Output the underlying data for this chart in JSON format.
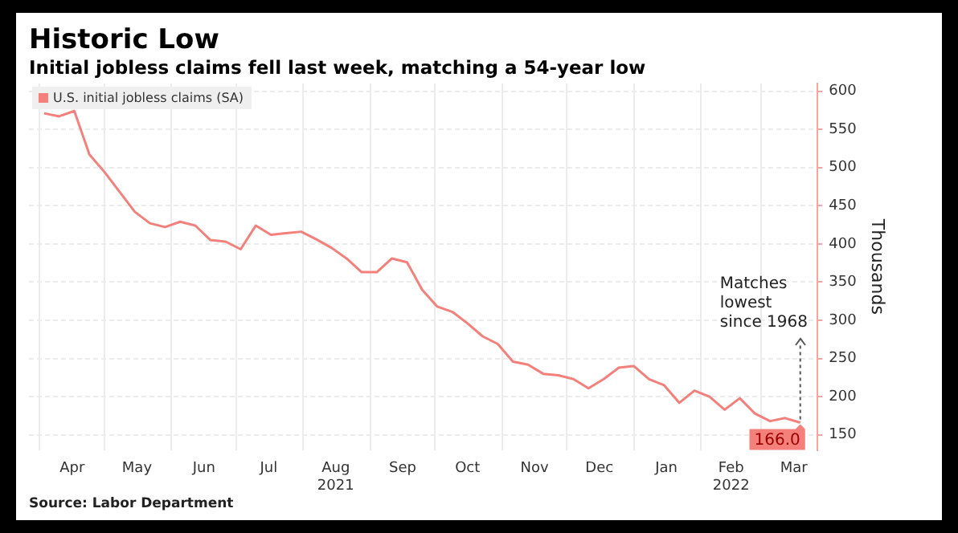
{
  "chart_data": {
    "type": "line",
    "title": "Historic Low",
    "subtitle": "Initial jobless claims fell last week, matching a 54-year low",
    "ylabel": "Thousands",
    "x": [
      "2021-04-03",
      "2021-04-10",
      "2021-04-17",
      "2021-04-24",
      "2021-05-01",
      "2021-05-08",
      "2021-05-15",
      "2021-05-22",
      "2021-05-29",
      "2021-06-05",
      "2021-06-12",
      "2021-06-19",
      "2021-06-26",
      "2021-07-03",
      "2021-07-10",
      "2021-07-17",
      "2021-07-24",
      "2021-07-31",
      "2021-08-07",
      "2021-08-14",
      "2021-08-21",
      "2021-08-28",
      "2021-09-04",
      "2021-09-11",
      "2021-09-18",
      "2021-09-25",
      "2021-10-02",
      "2021-10-09",
      "2021-10-16",
      "2021-10-23",
      "2021-10-30",
      "2021-11-06",
      "2021-11-13",
      "2021-11-20",
      "2021-11-27",
      "2021-12-04",
      "2021-12-11",
      "2021-12-18",
      "2021-12-25",
      "2022-01-01",
      "2022-01-08",
      "2022-01-15",
      "2022-01-22",
      "2022-01-29",
      "2022-02-05",
      "2022-02-12",
      "2022-02-19",
      "2022-02-26",
      "2022-03-05",
      "2022-03-12",
      "2022-03-19"
    ],
    "series": [
      {
        "name": "U.S. initial jobless claims (SA)",
        "color": "#f4807c",
        "values": [
          571,
          567,
          574,
          517,
          494,
          468,
          442,
          427,
          422,
          429,
          424,
          405,
          403,
          393,
          424,
          412,
          414,
          416,
          406,
          395,
          381,
          363,
          363,
          381,
          376,
          340,
          318,
          311,
          296,
          279,
          269,
          246,
          242,
          230,
          228,
          223,
          211,
          223,
          238,
          240,
          223,
          215,
          192,
          208,
          200,
          183,
          198,
          178,
          168,
          172,
          166
        ],
        "value_labels": [
          null,
          null,
          null,
          null,
          null,
          null,
          null,
          null,
          null,
          null,
          null,
          null,
          null,
          null,
          null,
          null,
          null,
          null,
          null,
          null,
          null,
          null,
          null,
          null,
          null,
          null,
          null,
          null,
          null,
          null,
          null,
          null,
          null,
          null,
          null,
          null,
          null,
          null,
          null,
          null,
          null,
          null,
          null,
          null,
          null,
          null,
          null,
          null,
          null,
          null,
          "166.0"
        ]
      }
    ],
    "xlim": [
      "2021-03-27",
      "2022-03-27"
    ],
    "xticks": [
      {
        "value": "2021-04-01",
        "label": null
      },
      {
        "value": "2021-04-16",
        "label": "Apr"
      },
      {
        "value": "2021-05-01",
        "label": null
      },
      {
        "value": "2021-05-16",
        "label": "May"
      },
      {
        "value": "2021-06-01",
        "label": null
      },
      {
        "value": "2021-06-16",
        "label": "Jun"
      },
      {
        "value": "2021-07-01",
        "label": null
      },
      {
        "value": "2021-07-16",
        "label": "Jul"
      },
      {
        "value": "2021-08-01",
        "label": null
      },
      {
        "value": "2021-08-16",
        "label": "Aug\n2021"
      },
      {
        "value": "2021-09-01",
        "label": null
      },
      {
        "value": "2021-09-16",
        "label": "Sep"
      },
      {
        "value": "2021-10-01",
        "label": null
      },
      {
        "value": "2021-10-16",
        "label": "Oct"
      },
      {
        "value": "2021-11-01",
        "label": null
      },
      {
        "value": "2021-11-16",
        "label": "Nov"
      },
      {
        "value": "2021-12-01",
        "label": null
      },
      {
        "value": "2021-12-16",
        "label": "Dec"
      },
      {
        "value": "2022-01-01",
        "label": null
      },
      {
        "value": "2022-01-16",
        "label": "Jan"
      },
      {
        "value": "2022-02-01",
        "label": null
      },
      {
        "value": "2022-02-15",
        "label": "Feb\n2022"
      },
      {
        "value": "2022-03-01",
        "label": null
      },
      {
        "value": "2022-03-16",
        "label": "Mar"
      }
    ],
    "ylim": [
      130,
      610
    ],
    "yticks": [
      150,
      200,
      250,
      300,
      350,
      400,
      450,
      500,
      550,
      600
    ],
    "grid": true,
    "legend": "top left",
    "marker": "none",
    "line_style": "solid",
    "annotations": [
      {
        "text": "Matches\nlowest\nsince 1968",
        "x": "2022-03-19",
        "y": 166
      },
      "Source: Labor Department"
    ]
  }
}
